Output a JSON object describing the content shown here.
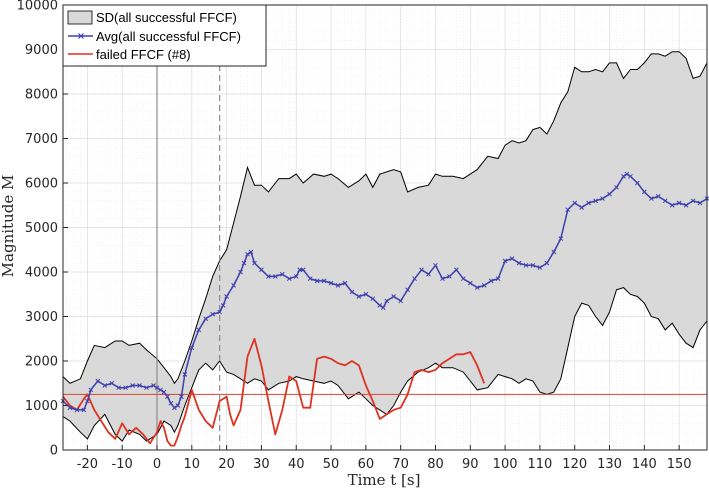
{
  "chart_data": {
    "type": "line",
    "xlabel": "Time t [s]",
    "ylabel": "Magnitude M",
    "xlim": [
      -27,
      158
    ],
    "ylim": [
      0,
      10000
    ],
    "x_ticks": [
      -20,
      -10,
      0,
      10,
      20,
      30,
      40,
      50,
      60,
      70,
      80,
      90,
      100,
      110,
      120,
      130,
      140,
      150
    ],
    "y_ticks": [
      0,
      1000,
      2000,
      3000,
      4000,
      5000,
      6000,
      7000,
      8000,
      9000,
      10000
    ],
    "grid": "major and minor",
    "legend_position": "top-left",
    "vertical_lines": [
      {
        "x": 0,
        "style": "solid"
      },
      {
        "x": 18,
        "style": "dashed"
      }
    ],
    "reference_line": {
      "y": 1250
    },
    "series": [
      {
        "name": "SD(all successful FFCF)",
        "kind": "band",
        "x": [
          -27,
          -25,
          -22,
          -20,
          -18,
          -15,
          -12,
          -10,
          -8,
          -5,
          -3,
          0,
          2,
          4,
          5,
          6,
          8,
          10,
          12,
          14,
          16,
          18,
          20,
          22,
          24,
          26,
          28,
          30,
          32,
          35,
          38,
          40,
          42,
          45,
          48,
          50,
          52,
          55,
          58,
          60,
          62,
          64,
          66,
          68,
          70,
          72,
          75,
          78,
          80,
          82,
          85,
          88,
          90,
          92,
          95,
          98,
          100,
          102,
          104,
          106,
          108,
          110,
          112,
          114,
          116,
          118,
          120,
          122,
          124,
          126,
          128,
          130,
          132,
          134,
          136,
          138,
          140,
          142,
          144,
          146,
          148,
          150,
          152,
          154,
          156,
          158
        ],
        "upper": [
          1650,
          1500,
          1600,
          2000,
          2350,
          2300,
          2450,
          2450,
          2350,
          2400,
          2250,
          2050,
          1850,
          1650,
          1500,
          1600,
          2000,
          2450,
          2950,
          3400,
          3900,
          4250,
          4500,
          5100,
          5700,
          6350,
          5950,
          5950,
          5800,
          6100,
          6100,
          6200,
          6000,
          6200,
          6150,
          6200,
          6100,
          5900,
          6050,
          6200,
          5900,
          6200,
          6250,
          6300,
          6250,
          5800,
          5900,
          5950,
          6200,
          6150,
          6150,
          6100,
          6200,
          6300,
          6600,
          6550,
          6850,
          6950,
          6900,
          6950,
          7200,
          7250,
          7100,
          7400,
          7800,
          8050,
          8600,
          8500,
          8500,
          8550,
          8500,
          8700,
          8700,
          8350,
          8550,
          8550,
          8700,
          8900,
          8900,
          8850,
          8950,
          8950,
          8800,
          8350,
          8400,
          8700
        ],
        "lower": [
          750,
          650,
          400,
          250,
          550,
          800,
          350,
          200,
          450,
          350,
          200,
          350,
          650,
          550,
          400,
          550,
          1000,
          1400,
          1800,
          1950,
          1800,
          2000,
          1750,
          1700,
          1600,
          1500,
          1600,
          1550,
          1350,
          1500,
          1550,
          1650,
          1600,
          1550,
          1500,
          1550,
          1450,
          1150,
          1300,
          1150,
          1000,
          900,
          800,
          1000,
          1300,
          1550,
          1750,
          1850,
          1950,
          1850,
          1850,
          1750,
          1550,
          1350,
          1400,
          1700,
          1650,
          1600,
          1500,
          1600,
          1550,
          1300,
          1250,
          1300,
          1600,
          2300,
          3000,
          3300,
          3250,
          3000,
          2800,
          3100,
          3600,
          3650,
          3500,
          3450,
          3300,
          3000,
          2950,
          2700,
          2850,
          2600,
          2400,
          2300,
          2700,
          2900
        ]
      },
      {
        "name": "Avg(all successful FFCF)",
        "kind": "line-markers",
        "x": [
          -27,
          -25,
          -23,
          -21,
          -20,
          -19,
          -17,
          -15,
          -13,
          -11,
          -9,
          -7,
          -5,
          -3,
          -1,
          0,
          1,
          2,
          3,
          4,
          5,
          6,
          7,
          8,
          10,
          12,
          14,
          16,
          18,
          19,
          20,
          22,
          24,
          25,
          26,
          27,
          28,
          30,
          32,
          34,
          36,
          38,
          40,
          41,
          42,
          44,
          46,
          48,
          50,
          52,
          54,
          56,
          58,
          60,
          62,
          64,
          65,
          66,
          68,
          70,
          72,
          74,
          76,
          78,
          80,
          82,
          84,
          86,
          88,
          90,
          92,
          94,
          96,
          98,
          100,
          102,
          104,
          106,
          108,
          110,
          112,
          114,
          116,
          118,
          120,
          122,
          124,
          126,
          128,
          130,
          132,
          134,
          135,
          136,
          138,
          140,
          142,
          144,
          146,
          148,
          150,
          152,
          154,
          156,
          158
        ],
        "y": [
          1100,
          950,
          900,
          900,
          1100,
          1350,
          1550,
          1450,
          1500,
          1400,
          1400,
          1450,
          1450,
          1400,
          1450,
          1400,
          1350,
          1300,
          1200,
          1050,
          950,
          1000,
          1200,
          1700,
          2300,
          2700,
          2950,
          3050,
          3100,
          3250,
          3450,
          3700,
          4000,
          4200,
          4400,
          4450,
          4200,
          4050,
          3900,
          3900,
          3950,
          3850,
          3900,
          4050,
          4050,
          3850,
          3800,
          3800,
          3750,
          3700,
          3750,
          3550,
          3450,
          3500,
          3400,
          3250,
          3200,
          3350,
          3450,
          3350,
          3600,
          3850,
          4050,
          3950,
          4150,
          3850,
          3900,
          4050,
          3850,
          3750,
          3650,
          3700,
          3800,
          3850,
          4250,
          4300,
          4200,
          4150,
          4150,
          4100,
          4200,
          4450,
          4750,
          5400,
          5550,
          5450,
          5550,
          5600,
          5650,
          5750,
          5900,
          6150,
          6200,
          6150,
          6000,
          5800,
          5650,
          5700,
          5600,
          5500,
          5550,
          5500,
          5600,
          5550,
          5650
        ]
      },
      {
        "name": "failed FFCF (#8)",
        "kind": "line",
        "x": [
          -27,
          -25,
          -23,
          -21,
          -20,
          -18,
          -16,
          -14,
          -12,
          -10,
          -8,
          -6,
          -4,
          -2,
          0,
          1,
          2,
          3,
          4,
          5,
          6,
          7,
          8,
          10,
          12,
          14,
          16,
          18,
          20,
          21,
          22,
          24,
          26,
          27,
          28,
          30,
          32,
          34,
          36,
          38,
          40,
          42,
          44,
          46,
          48,
          50,
          52,
          54,
          56,
          58,
          60,
          62,
          64,
          66,
          68,
          70,
          72,
          74,
          76,
          78,
          80,
          82,
          84,
          86,
          88,
          90,
          92,
          94
        ],
        "y": [
          1200,
          1000,
          900,
          1150,
          1250,
          900,
          650,
          400,
          250,
          600,
          350,
          500,
          350,
          150,
          400,
          650,
          500,
          200,
          100,
          100,
          300,
          550,
          750,
          1350,
          900,
          650,
          500,
          1100,
          1200,
          800,
          550,
          900,
          2100,
          2300,
          2500,
          1900,
          1100,
          350,
          900,
          1650,
          1550,
          950,
          950,
          2050,
          2100,
          2050,
          1950,
          1900,
          2000,
          1900,
          1450,
          1100,
          700,
          800,
          900,
          950,
          1250,
          1750,
          1800,
          1750,
          1800,
          1950,
          2050,
          2150,
          2150,
          2200,
          1900,
          1500
        ]
      }
    ]
  }
}
